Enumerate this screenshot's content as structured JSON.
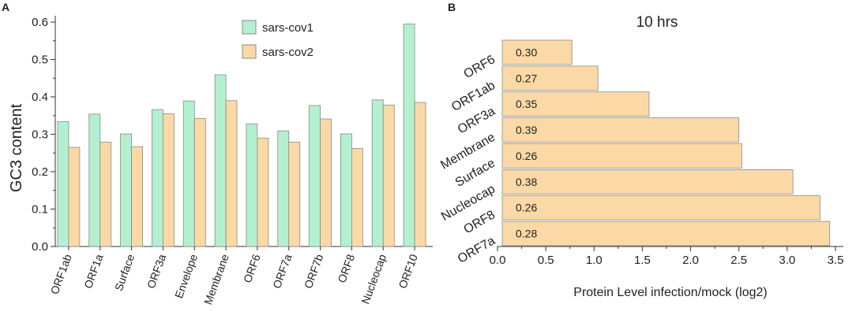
{
  "colors": {
    "cov1_fill": "#b3f0d0",
    "cov2_fill": "#fbd9a6",
    "bar_stroke": "#8a8a8a",
    "axis": "#333333",
    "panel_b_fill": "#fbd9a6"
  },
  "chart_data": [
    {
      "type": "bar",
      "panel_label": "A",
      "title": "",
      "xlabel": "",
      "ylabel": "GC3 content",
      "ylim": [
        0.0,
        0.6
      ],
      "yticks": [
        "0.0",
        "0.1",
        "0.2",
        "0.3",
        "0.4",
        "0.5",
        "0.6"
      ],
      "grid": false,
      "legend_position": "top-center",
      "categories": [
        "ORF1ab",
        "ORF1a",
        "Surface",
        "ORF3a",
        "Envelope",
        "Membrane",
        "ORF6",
        "ORF7a",
        "ORF7b",
        "ORF8",
        "Nucleocap",
        "ORF10"
      ],
      "series": [
        {
          "name": "sars-cov1",
          "values": [
            0.334,
            0.354,
            0.301,
            0.366,
            0.389,
            0.459,
            0.328,
            0.309,
            0.377,
            0.301,
            0.392,
            0.595
          ]
        },
        {
          "name": "sars-cov2",
          "values": [
            0.265,
            0.279,
            0.267,
            0.355,
            0.342,
            0.39,
            0.29,
            0.279,
            0.341,
            0.262,
            0.378,
            0.385
          ]
        }
      ]
    },
    {
      "type": "bar",
      "orientation": "horizontal",
      "panel_label": "B",
      "title": "10 hrs",
      "xlabel": "Protein Level infection/mock (log2)",
      "ylabel": "",
      "xlim": [
        0.0,
        3.5
      ],
      "xticks": [
        "0.0",
        "0.5",
        "1.0",
        "1.5",
        "2.0",
        "2.5",
        "3.0",
        "3.5"
      ],
      "grid": false,
      "categories": [
        "ORF6",
        "ORF1ab",
        "ORF3a",
        "Membrane",
        "Surface",
        "Nucleocap",
        "ORF8",
        "ORF7a"
      ],
      "values": [
        0.77,
        1.04,
        1.57,
        2.5,
        2.53,
        3.06,
        3.34,
        3.44
      ],
      "labels": [
        "0.30",
        "0.27",
        "0.35",
        "0.39",
        "0.26",
        "0.38",
        "0.26",
        "0.28"
      ]
    }
  ]
}
